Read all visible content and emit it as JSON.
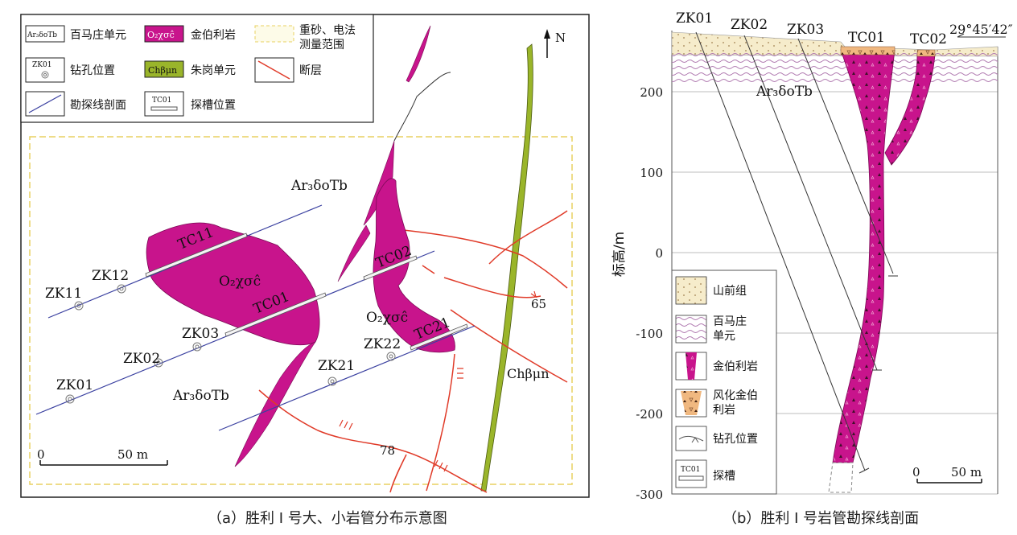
{
  "panel_a": {
    "caption": "（a）胜利 I 号大、小岩管分布示意图",
    "north_label": "N",
    "legend": {
      "ar_unit_code": "Ar₃δoTb",
      "ar_unit_name": "百马庄单元",
      "kimberlite_code": "O₂χσĉ",
      "kimberlite_name": "金伯利岩",
      "survey_range_name_1": "重砂、电法",
      "survey_range_name_2": "测量范围",
      "borehole_code": "ZK01",
      "borehole_name": "钻孔位置",
      "ch_unit_code": "Chβμn",
      "ch_unit_name": "朱岗单元",
      "fault_name": "断层",
      "section_name": "勘探线剖面",
      "trench_code": "TC01",
      "trench_name": "探槽位置"
    },
    "labels": {
      "ar_north": "Ar₃δoTb",
      "ar_south": "Ar₃δoTb",
      "big_pipe": "O₂χσĉ",
      "small_pipe": "O₂χσĉ",
      "ch_unit": "Chβμn",
      "tc11": "TC11",
      "tc01": "TC01",
      "tc02": "TC02",
      "tc21": "TC21",
      "zk11": "ZK11",
      "zk12": "ZK12",
      "zk01": "ZK01",
      "zk02": "ZK02",
      "zk03": "ZK03",
      "zk21": "ZK21",
      "zk22": "ZK22",
      "dip_65": "65",
      "dip_78": "78"
    },
    "scale": {
      "zero": "0",
      "length": "50 m"
    }
  },
  "panel_b": {
    "caption": "（b）胜利 I 号岩管勘探线剖面",
    "y_axis_label": "标高/m",
    "elevation_ticks": [
      "200",
      "100",
      "0",
      "-100",
      "-200",
      "-300"
    ],
    "boreholes": [
      "ZK01",
      "ZK02",
      "ZK03"
    ],
    "trenches": [
      "TC01",
      "TC02"
    ],
    "azimuth": "29°45′42″",
    "unit_label": "Ar₃δoTb",
    "legend": {
      "shanqian": "山前组",
      "baimazhuang_1": "百马庄",
      "baimazhuang_2": "单元",
      "kimberlite": "金伯利岩",
      "weathered_1": "风化金伯",
      "weathered_2": "利岩",
      "borehole": "钻孔位置",
      "trench_code": "TC01",
      "trench": "探槽"
    },
    "scale": {
      "zero": "0",
      "length": "50 m"
    }
  },
  "colors": {
    "kimberlite": "#c8148c",
    "chunit": "#9ab52a",
    "fault": "#e03a28",
    "section_line": "#3a40a0",
    "survey_range": "#f0e6a0",
    "shanqian": "#f6eccb",
    "weathered": "#f0b880"
  }
}
